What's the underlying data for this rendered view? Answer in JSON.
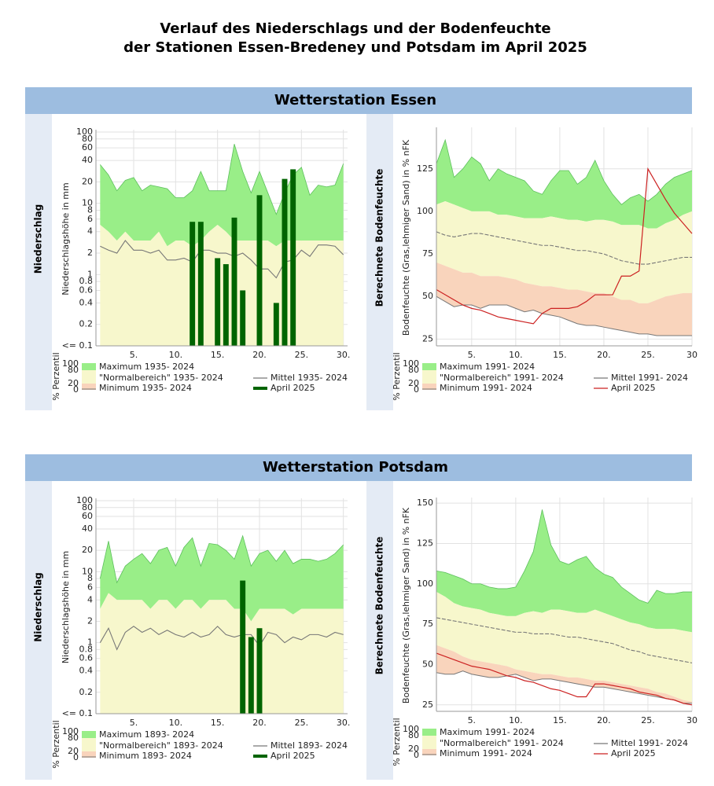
{
  "title": [
    "Verlauf des Niederschlags und der Bodenfeuchte",
    "der Stationen Essen-Bredeney und Potsdam im April 2025"
  ],
  "sections": [
    "Wetterstation Essen",
    "Wetterstation Potsdam"
  ],
  "chart_data": [
    {
      "type": "bar",
      "panel_label": "Niederschlag",
      "ylabel": "Niederschlagshöhe in mm",
      "log_scale": true,
      "grid": true,
      "x": [
        1,
        2,
        3,
        4,
        5,
        6,
        7,
        8,
        9,
        10,
        11,
        12,
        13,
        14,
        15,
        16,
        17,
        18,
        19,
        20,
        21,
        22,
        23,
        24,
        25,
        26,
        27,
        28,
        29,
        30
      ],
      "xlim": [
        0.5,
        30.5
      ],
      "xticks": [
        {
          "value": 5,
          "label": "5."
        },
        {
          "value": 10,
          "label": "10."
        },
        {
          "value": 15,
          "label": "15."
        },
        {
          "value": 20,
          "label": "20."
        },
        {
          "value": 25,
          "label": "25."
        },
        {
          "value": 30,
          "label": "30."
        }
      ],
      "ylim": [
        0.1,
        100
      ],
      "yticks": [
        {
          "value": 0.1,
          "label": "<= 0.1"
        },
        0.2,
        0.4,
        0.6,
        0.8,
        1,
        2,
        4,
        6,
        8,
        10,
        20,
        40,
        60,
        80,
        100
      ],
      "legend_scale_label": "% Perzentil",
      "legend_scale_ticks": [
        100,
        80,
        20,
        0
      ],
      "series": [
        {
          "name": "Maximum 1935- 2024",
          "color": "#99ee88",
          "values": [
            35,
            25,
            15,
            21,
            23,
            15,
            18,
            17,
            16,
            12,
            12,
            15,
            28,
            15,
            15,
            15,
            68,
            28,
            14,
            28,
            14,
            7,
            14,
            25,
            32,
            13,
            18,
            17,
            18,
            36
          ]
        },
        {
          "name": "\"Normalbereich\" 1935- 2024",
          "color": "#f7f7cc",
          "values": [
            5,
            4,
            3,
            4,
            3,
            3,
            3,
            4,
            2.5,
            3,
            3,
            2.5,
            3,
            4,
            5,
            4,
            3,
            3,
            3,
            3,
            3,
            2.5,
            3,
            3,
            3,
            3,
            3,
            3,
            3,
            3
          ]
        },
        {
          "name": "Minimum 1935- 2024",
          "color": "#f9d4bc"
        },
        {
          "name": "Mittel 1935- 2024",
          "color": "#777777",
          "values": [
            2.5,
            2.2,
            2,
            3,
            2.2,
            2.2,
            2,
            2.2,
            1.6,
            1.6,
            1.7,
            1.5,
            2.2,
            2.2,
            2,
            2,
            1.8,
            2,
            1.6,
            1.2,
            1.2,
            0.9,
            1.5,
            1.6,
            2.2,
            1.8,
            2.6,
            2.6,
            2.5,
            1.9
          ]
        },
        {
          "name": "April 2025",
          "color": "#006400",
          "values": [
            null,
            null,
            null,
            null,
            null,
            null,
            null,
            null,
            null,
            null,
            null,
            5.5,
            5.5,
            null,
            1.7,
            1.4,
            6.3,
            0.6,
            null,
            13,
            null,
            0.4,
            22,
            30,
            null,
            null,
            null,
            null,
            null,
            null
          ]
        }
      ]
    },
    {
      "type": "line",
      "panel_label": "Berechnete Bodenfeuchte",
      "ylabel": "Bodenfeuchte (Gras,lehmiger Sand) in % nFK",
      "log_scale": false,
      "grid": true,
      "x": [
        1,
        2,
        3,
        4,
        5,
        6,
        7,
        8,
        9,
        10,
        11,
        12,
        13,
        14,
        15,
        16,
        17,
        18,
        19,
        20,
        21,
        22,
        23,
        24,
        25,
        26,
        27,
        28,
        29,
        30
      ],
      "xlim": [
        1,
        30
      ],
      "xticks": [
        {
          "value": 5,
          "label": "5."
        },
        {
          "value": 10,
          "label": "10."
        },
        {
          "value": 15,
          "label": "15."
        },
        {
          "value": 20,
          "label": "20."
        },
        {
          "value": 25,
          "label": "25."
        },
        {
          "value": 30,
          "label": "30"
        }
      ],
      "ylim": [
        21,
        148
      ],
      "yticks": [
        25,
        50,
        75,
        100,
        125
      ],
      "legend_scale_label": "% Perzentil",
      "legend_scale_ticks": [
        100,
        80,
        20,
        0
      ],
      "series": [
        {
          "name": "Maximum 1991- 2024",
          "color": "#99ee88",
          "values": [
            128,
            142,
            120,
            125,
            132,
            128,
            118,
            125,
            122,
            120,
            118,
            112,
            110,
            118,
            124,
            124,
            116,
            120,
            130,
            118,
            110,
            104,
            108,
            110,
            106,
            110,
            116,
            120,
            122,
            124
          ]
        },
        {
          "name": "\"Normalbereich\" 1991- 2024",
          "color": "#f7f7cc",
          "values": [
            104,
            106,
            104,
            102,
            100,
            100,
            100,
            98,
            98,
            97,
            96,
            96,
            96,
            97,
            96,
            95,
            95,
            94,
            95,
            95,
            94,
            92,
            92,
            92,
            90,
            90,
            93,
            95,
            98,
            100
          ],
          "lower": [
            70,
            68,
            66,
            64,
            64,
            62,
            62,
            62,
            61,
            60,
            58,
            57,
            56,
            56,
            55,
            54,
            54,
            53,
            52,
            52,
            50,
            48,
            48,
            46,
            46,
            48,
            50,
            51,
            52,
            52
          ]
        },
        {
          "name": "Minimum 1991- 2024",
          "color": "#f9d4bc",
          "values": [
            50,
            47,
            44,
            45,
            45,
            43,
            45,
            45,
            45,
            43,
            41,
            42,
            40,
            39,
            38,
            36,
            34,
            33,
            33,
            32,
            31,
            30,
            29,
            28,
            28,
            27,
            27,
            27,
            27,
            27
          ]
        },
        {
          "name": "Mittel 1991- 2024",
          "color": "#777777",
          "values": [
            88,
            86,
            85,
            86,
            87,
            87,
            86,
            85,
            84,
            83,
            82,
            81,
            80,
            80,
            79,
            78,
            77,
            77,
            76,
            75,
            73,
            71,
            70,
            69,
            69,
            70,
            71,
            72,
            73,
            73
          ]
        },
        {
          "name": "April 2025",
          "color": "#cc2222",
          "values": [
            54,
            51,
            48,
            45,
            43,
            42,
            40,
            38,
            37,
            36,
            35,
            34,
            40,
            43,
            43,
            43,
            44,
            47,
            51,
            51,
            51,
            62,
            62,
            65,
            125,
            116,
            107,
            99,
            93,
            87
          ]
        }
      ]
    },
    {
      "type": "bar",
      "panel_label": "Niederschlag",
      "ylabel": "Niederschlagshöhe in mm",
      "log_scale": true,
      "grid": true,
      "x": [
        1,
        2,
        3,
        4,
        5,
        6,
        7,
        8,
        9,
        10,
        11,
        12,
        13,
        14,
        15,
        16,
        17,
        18,
        19,
        20,
        21,
        22,
        23,
        24,
        25,
        26,
        27,
        28,
        29,
        30
      ],
      "xlim": [
        0.5,
        30.5
      ],
      "xticks": [
        {
          "value": 5,
          "label": "5."
        },
        {
          "value": 10,
          "label": "10."
        },
        {
          "value": 15,
          "label": "15."
        },
        {
          "value": 20,
          "label": "20."
        },
        {
          "value": 25,
          "label": "25."
        },
        {
          "value": 30,
          "label": "30."
        }
      ],
      "ylim": [
        0.1,
        100
      ],
      "yticks": [
        {
          "value": 0.1,
          "label": "<= 0.1"
        },
        0.2,
        0.4,
        0.6,
        0.8,
        1,
        2,
        4,
        6,
        8,
        10,
        20,
        40,
        60,
        80,
        100
      ],
      "legend_scale_label": "% Perzentil",
      "legend_scale_ticks": [
        100,
        80,
        20,
        0
      ],
      "series": [
        {
          "name": "Maximum 1893- 2024",
          "color": "#99ee88",
          "values": [
            8,
            27,
            7,
            12,
            15,
            18,
            13,
            20,
            22,
            12,
            22,
            30,
            12,
            25,
            24,
            20,
            15,
            32,
            12,
            18,
            20,
            14,
            20,
            13,
            15,
            15,
            14,
            15,
            18,
            24
          ]
        },
        {
          "name": "\"Normalbereich\" 1893- 2024",
          "color": "#f7f7cc",
          "values": [
            3,
            5,
            4,
            4,
            4,
            4,
            3,
            4,
            4,
            3,
            4,
            4,
            3,
            4,
            4,
            4,
            3,
            3,
            2,
            3,
            3,
            3,
            3,
            2.5,
            3,
            3,
            3,
            3,
            3,
            3
          ]
        },
        {
          "name": "Minimum 1893- 2024",
          "color": "#f9d4bc"
        },
        {
          "name": "Mittel 1893- 2024",
          "color": "#777777",
          "values": [
            1,
            1.6,
            0.8,
            1.4,
            1.7,
            1.4,
            1.6,
            1.3,
            1.5,
            1.3,
            1.2,
            1.4,
            1.2,
            1.3,
            1.7,
            1.3,
            1.2,
            1.3,
            1.3,
            0.9,
            1.4,
            1.3,
            1,
            1.2,
            1.1,
            1.3,
            1.3,
            1.2,
            1.4,
            1.3
          ]
        },
        {
          "name": "April 2025",
          "color": "#006400",
          "values": [
            null,
            null,
            null,
            null,
            null,
            null,
            null,
            null,
            null,
            null,
            null,
            null,
            null,
            null,
            null,
            null,
            null,
            7.5,
            1.2,
            1.6,
            null,
            null,
            null,
            null,
            null,
            null,
            null,
            null,
            null,
            null
          ]
        }
      ]
    },
    {
      "type": "line",
      "panel_label": "Berechnete Bodenfeuchte",
      "ylabel": "Bodenfeuchte (Gras,lehmiger Sand) in % nFK",
      "log_scale": false,
      "grid": true,
      "x": [
        1,
        2,
        3,
        4,
        5,
        6,
        7,
        8,
        9,
        10,
        11,
        12,
        13,
        14,
        15,
        16,
        17,
        18,
        19,
        20,
        21,
        22,
        23,
        24,
        25,
        26,
        27,
        28,
        29,
        30
      ],
      "xlim": [
        1,
        30
      ],
      "xticks": [
        {
          "value": 5,
          "label": "5."
        },
        {
          "value": 10,
          "label": "10."
        },
        {
          "value": 15,
          "label": "15."
        },
        {
          "value": 20,
          "label": "20."
        },
        {
          "value": 25,
          "label": "25."
        },
        {
          "value": 30,
          "label": "30"
        }
      ],
      "ylim": [
        21,
        152
      ],
      "yticks": [
        25,
        50,
        75,
        100,
        125,
        150
      ],
      "legend_scale_label": "% Perzentil",
      "legend_scale_ticks": [
        100,
        80,
        20,
        0
      ],
      "series": [
        {
          "name": "Maximum 1991- 2024",
          "color": "#99ee88",
          "values": [
            108,
            107,
            105,
            103,
            100,
            100,
            98,
            97,
            97,
            98,
            108,
            120,
            146,
            124,
            114,
            112,
            115,
            117,
            110,
            106,
            104,
            98,
            94,
            90,
            88,
            96,
            94,
            94,
            95,
            95
          ]
        },
        {
          "name": "\"Normalbereich\" 1991- 2024",
          "color": "#f7f7cc",
          "values": [
            95,
            92,
            88,
            86,
            85,
            84,
            82,
            81,
            80,
            80,
            82,
            83,
            82,
            84,
            84,
            83,
            82,
            82,
            84,
            82,
            80,
            78,
            76,
            75,
            73,
            72,
            72,
            72,
            71,
            70
          ],
          "lower": [
            62,
            60,
            58,
            55,
            53,
            52,
            51,
            50,
            49,
            47,
            46,
            45,
            44,
            44,
            43,
            42,
            42,
            41,
            40,
            40,
            39,
            38,
            37,
            36,
            35,
            33,
            32,
            30,
            28,
            27
          ]
        },
        {
          "name": "Minimum 1991- 2024",
          "color": "#f9d4bc",
          "values": [
            45,
            44,
            44,
            46,
            44,
            43,
            42,
            42,
            43,
            44,
            42,
            40,
            41,
            41,
            40,
            39,
            38,
            37,
            36,
            36,
            35,
            34,
            33,
            32,
            31,
            30,
            29,
            28,
            26,
            26
          ]
        },
        {
          "name": "Mittel 1991- 2024",
          "color": "#777777",
          "values": [
            79,
            78,
            77,
            76,
            75,
            74,
            73,
            72,
            71,
            70,
            70,
            69,
            69,
            69,
            68,
            67,
            67,
            66,
            65,
            64,
            63,
            61,
            59,
            58,
            56,
            55,
            54,
            53,
            52,
            51
          ]
        },
        {
          "name": "April 2025",
          "color": "#cc2222",
          "values": [
            57,
            55,
            53,
            51,
            49,
            48,
            47,
            45,
            43,
            42,
            40,
            39,
            37,
            35,
            34,
            32,
            30,
            30,
            38,
            38,
            37,
            36,
            35,
            33,
            32,
            31,
            29,
            28,
            26,
            25
          ]
        }
      ]
    }
  ]
}
